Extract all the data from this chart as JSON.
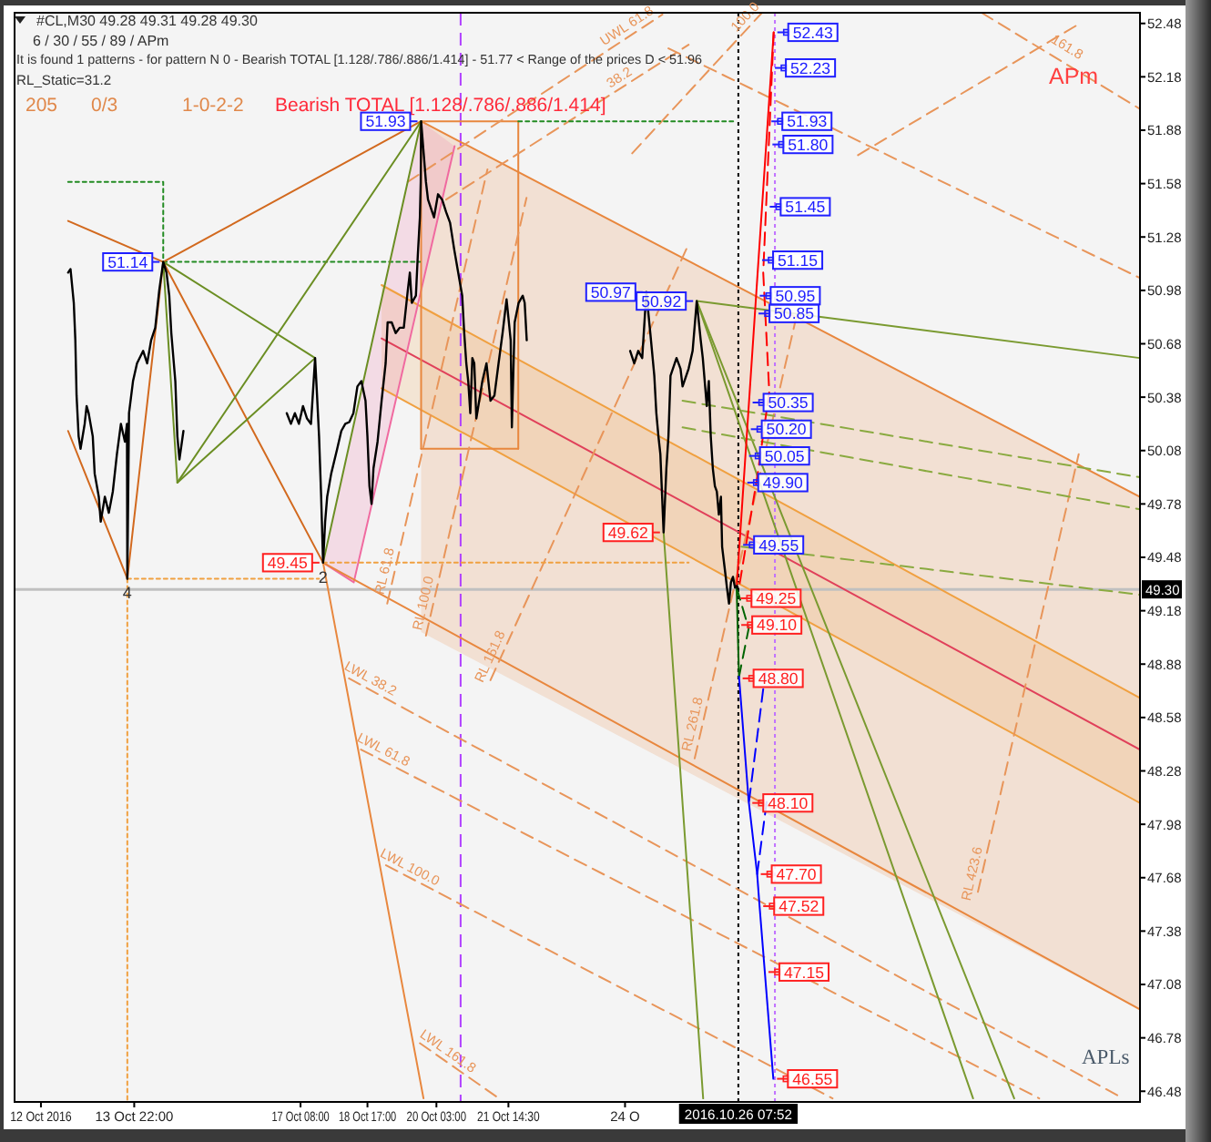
{
  "chart_data": {
    "type": "line",
    "title": "#CL,M30 49.28 49.31 49.28 49.30",
    "subtitle": "6 / 30 / 55 / 89 / APm",
    "xlim": [
      "2016-10-11T11:00",
      "2016-11-03T13:54"
    ],
    "xticks": [
      {
        "value": "2016-10-12",
        "label": "12 Oct 2016"
      },
      {
        "value": "2016-10-13T22:00",
        "label": "13 Oct 22:00"
      },
      {
        "value": "2016-10-17T08:00",
        "label": "17 Oct 08:00"
      },
      {
        "value": "2016-10-18T17:00",
        "label": "18 Oct 17:00"
      },
      {
        "value": "2016-10-20T03:00",
        "label": "20 Oct 03:00"
      },
      {
        "value": "2016-10-21T14:30",
        "label": "21 Oct 14:30"
      },
      {
        "value": "2016-10-24",
        "label": "24 O"
      }
    ],
    "ylim": [
      46.42,
      52.54
    ],
    "yticks": [
      46.48,
      46.78,
      47.08,
      47.38,
      47.68,
      47.98,
      48.28,
      48.58,
      48.88,
      49.18,
      49.48,
      49.78,
      50.08,
      50.38,
      50.68,
      50.98,
      51.28,
      51.58,
      51.88,
      52.18,
      52.48
    ],
    "series": [
      {
        "color": "#e8873e",
        "x": [
          "2016-10-19T19:27",
          "2016-11-03T13:50"
        ],
        "values": [
          51.93,
          49.82
        ],
        "lower": [
          49.06,
          46.94
        ],
        "upper": [
          51.93,
          49.82
        ]
      },
      {
        "color": "#f0a040",
        "x": [
          "2016-10-18T23:58",
          "2016-11-03T13:50"
        ],
        "values": [
          51.01,
          48.69
        ],
        "lower": [
          50.43,
          48.1
        ],
        "upper": [
          51.01,
          48.69
        ]
      },
      {
        "color": "#f0a040",
        "x": [
          "2016-10-18T23:58",
          "2016-11-03T13:50"
        ],
        "values": [
          50.43,
          48.1
        ]
      },
      {
        "color": "#e0405a",
        "x": [
          "2016-10-18T23:58",
          "2016-11-03T13:50"
        ],
        "values": [
          50.71,
          48.4
        ]
      },
      {
        "color": "#f06aa0",
        "x": [
          "2016-10-17T19:07",
          "2016-10-18T10:15",
          "2016-10-19T19:27",
          "2016-10-20T11:57"
        ],
        "values": [
          49.45,
          49.34,
          50.98,
          51.79
        ],
        "lower": [
          49.45,
          49.34,
          50.98,
          51.79
        ],
        "upper": [
          49.45,
          50.21,
          51.93,
          51.79
        ]
      },
      {
        "color": "#e8873e",
        "x": [
          "2016-10-17T19:07",
          "2016-11-03T13:50"
        ],
        "values": [
          49.45,
          46.94
        ]
      },
      {
        "color": "#e8873e",
        "x": [
          "2016-10-17T19:07",
          "2016-10-19T20:38"
        ],
        "values": [
          49.45,
          46.44
        ]
      },
      {
        "color": "#e8873e",
        "x": [
          "2016-10-19T19:27",
          "2016-10-19T19:27",
          "2016-10-21T19:22",
          "2016-10-21T19:22"
        ],
        "values": [
          50.09,
          51.93,
          51.93,
          50.09
        ]
      },
      {
        "color": "#e8873e",
        "x": [
          "2016-10-19T19:27",
          "2016-10-21T19:22"
        ],
        "values": [
          50.09,
          50.09
        ]
      },
      {
        "color": "#e8955a",
        "line_style": "dashed",
        "x": [
          "2016-10-18T07:52",
          "2016-11-03T05:34"
        ],
        "values": [
          48.8,
          46.44
        ]
      },
      {
        "color": "#e8955a",
        "line_style": "dashed",
        "x": [
          "2016-10-18T13:49",
          "2016-11-01T12:13"
        ],
        "values": [
          48.4,
          46.44
        ]
      },
      {
        "color": "#e8955a",
        "line_style": "dashed",
        "x": [
          "2016-10-19T02:09",
          "2016-10-28T06:20"
        ],
        "values": [
          47.75,
          46.44
        ]
      },
      {
        "color": "#e8955a",
        "line_style": "dashed",
        "x": [
          "2016-10-19T18:51",
          "2016-10-21T09:49"
        ],
        "values": [
          46.75,
          46.44
        ]
      },
      {
        "color": "#e8955a",
        "line_style": "dashed",
        "x": [
          "2016-10-19T02:45",
          "2016-10-21T04:10"
        ],
        "values": [
          49.22,
          51.66
        ]
      },
      {
        "color": "#e8955a",
        "line_style": "dashed",
        "x": [
          "2016-10-19T21:50",
          "2016-10-21T23:25"
        ],
        "values": [
          49.04,
          51.5
        ]
      },
      {
        "color": "#e8955a",
        "line_style": "dashed",
        "x": [
          "2016-10-21T05:39",
          "2016-10-25T07:21"
        ],
        "values": [
          48.79,
          51.24
        ]
      },
      {
        "color": "#e8955a",
        "line_style": "dashed",
        "x": [
          "2016-10-25T10:20",
          "2016-10-27T12:02"
        ],
        "values": [
          48.35,
          50.81
        ]
      },
      {
        "color": "#e8955a",
        "line_style": "dashed",
        "x": [
          "2016-10-31T05:59",
          "2016-11-02T07:41"
        ],
        "values": [
          47.6,
          50.06
        ]
      },
      {
        "color": "#e8955a",
        "line_style": "dashed",
        "x": [
          "2016-10-19T12:53",
          "2016-10-24T18:26"
        ],
        "values": [
          51.59,
          52.53
        ]
      },
      {
        "color": "#e8955a",
        "line_style": "dashed",
        "x": [
          "2016-10-20T07:47",
          "2016-10-25T07:21"
        ],
        "values": [
          51.49,
          52.36
        ]
      },
      {
        "color": "#e8955a",
        "line_style": "dashed",
        "x": [
          "2016-10-24T03:31",
          "2016-10-26T19:32"
        ],
        "values": [
          51.75,
          52.54
        ]
      },
      {
        "color": "#e8955a",
        "line_style": "dashed",
        "x": [
          "2016-10-28T18:51",
          "2016-11-02T08:17"
        ],
        "values": [
          51.74,
          52.48
        ]
      },
      {
        "color": "#e8955a",
        "line_style": "dashed",
        "x": [
          "2016-10-24T21:24",
          "2016-11-03T13:50"
        ],
        "values": [
          52.34,
          51.05
        ]
      },
      {
        "color": "#e8955a",
        "line_style": "dashed",
        "x": [
          "2016-10-31T07:47",
          "2016-11-03T13:50"
        ],
        "values": [
          52.54,
          52.0
        ]
      },
      {
        "color": "#f0a040",
        "line_style": "dotted",
        "x": [
          "2016-10-13T18:36",
          "2016-10-17T17:08"
        ],
        "values": [
          49.36,
          49.36
        ]
      },
      {
        "color": "#f0a040",
        "line_style": "dotted",
        "x": [
          "2016-10-17T19:07",
          "2016-10-25T07:21"
        ],
        "values": [
          49.45,
          49.45
        ]
      },
      {
        "color": "#f0a040",
        "line_style": "dotted",
        "x": [
          "2016-10-13T18:36",
          "2016-10-13T18:36"
        ],
        "values": [
          49.36,
          46.42
        ]
      },
      {
        "color": "#228b22",
        "line_style": "dotted",
        "x": [
          "2016-10-21T19:22",
          "2016-10-26T07:01"
        ],
        "values": [
          51.93,
          51.93
        ]
      },
      {
        "color": "#228b22",
        "line_style": "dotted",
        "x": [
          "2016-10-14T12:18",
          "2016-10-19T18:51"
        ],
        "values": [
          51.14,
          51.14
        ]
      },
      {
        "color": "#228b22",
        "line_style": "dotted",
        "x": [
          "2016-10-12T13:24",
          "2016-10-14T12:18",
          "2016-10-14T12:18"
        ],
        "values": [
          51.59,
          51.59,
          51.14
        ]
      },
      {
        "color": "#7a9a30",
        "x": [
          "2016-10-25T11:21",
          "2016-11-03T13:50"
        ],
        "values": [
          50.92,
          50.6
        ]
      },
      {
        "color": "#7a9a30",
        "x": [
          "2016-10-24T19:01",
          "2016-10-25T14:31"
        ],
        "values": [
          49.62,
          46.44
        ]
      },
      {
        "color": "#7a9a30",
        "x": [
          "2016-10-25T11:21",
          "2016-10-31T03:36"
        ],
        "values": [
          50.92,
          46.44
        ]
      },
      {
        "color": "#7a9a30",
        "x": [
          "2016-10-25T11:21",
          "2016-10-31T23:53"
        ],
        "values": [
          50.92,
          46.44
        ]
      },
      {
        "color": "#8aaa40",
        "line_style": "dashed",
        "x": [
          "2016-10-25T04:22",
          "2016-11-03T13:50"
        ],
        "values": [
          50.36,
          49.93
        ]
      },
      {
        "color": "#8aaa40",
        "line_style": "dashed",
        "x": [
          "2016-10-25T04:22",
          "2016-11-03T13:50"
        ],
        "values": [
          50.21,
          49.75
        ]
      },
      {
        "color": "#8aaa40",
        "line_style": "dashed",
        "x": [
          "2016-10-26T09:23",
          "2016-11-03T13:50"
        ],
        "values": [
          49.54,
          49.27
        ]
      },
      {
        "color": "#d2691e",
        "x": [
          "2016-10-12T13:24",
          "2016-10-13T18:36",
          "2016-10-14T12:18",
          "2016-10-17T19:07"
        ],
        "values": [
          50.19,
          49.36,
          51.14,
          49.45
        ]
      },
      {
        "color": "#d2691e",
        "x": [
          "2016-10-12T13:24",
          "2016-10-14T12:18",
          "2016-10-19T19:27"
        ],
        "values": [
          51.37,
          51.14,
          51.93
        ]
      },
      {
        "color": "#6b8e23",
        "x": [
          "2016-10-14T12:18",
          "2016-10-14T19:16",
          "2016-10-17T15:11"
        ],
        "values": [
          51.14,
          49.9,
          50.6
        ]
      },
      {
        "color": "#6b8e23",
        "x": [
          "2016-10-14T12:18",
          "2016-10-17T15:11"
        ],
        "values": [
          51.14,
          50.6
        ]
      },
      {
        "color": "#6b8e23",
        "x": [
          "2016-10-14T19:16",
          "2016-10-19T19:27"
        ],
        "values": [
          49.9,
          51.93
        ]
      },
      {
        "color": "#6b8e23",
        "x": [
          "2016-10-17T19:07",
          "2016-10-19T19:27"
        ],
        "values": [
          49.45,
          51.93
        ]
      },
      {
        "color": "#ff0000",
        "x": [
          "2016-10-26T07:01",
          "2016-10-27T01:18"
        ],
        "values": [
          49.31,
          52.43
        ]
      },
      {
        "color": "#ff0000",
        "line_style": "dashed",
        "x": [
          "2016-10-27T01:18",
          "2016-10-26T20:08",
          "2016-10-26T23:07",
          "2016-10-26T17:09",
          "2016-10-26T08:12"
        ],
        "values": [
          52.43,
          51.08,
          50.41,
          49.93,
          49.31
        ]
      },
      {
        "color": "#006400",
        "x": [
          "2016-10-26T07:01",
          "2016-10-26T08:12"
        ],
        "values": [
          49.31,
          48.81
        ]
      },
      {
        "color": "#006400",
        "line_style": "dashed",
        "x": [
          "2016-10-26T07:01",
          "2016-10-26T12:58",
          "2016-10-26T08:12"
        ],
        "values": [
          49.31,
          49.08,
          48.81
        ]
      },
      {
        "color": "#0000ff",
        "x": [
          "2016-10-26T08:12",
          "2016-10-26T12:58",
          "2016-10-26T17:09",
          "2016-10-26T18:20",
          "2016-10-27T01:07"
        ],
        "values": [
          48.81,
          48.11,
          47.7,
          47.52,
          46.55
        ]
      },
      {
        "color": "#0000ff",
        "line_style": "dashed",
        "x": [
          "2016-10-26T13:09",
          "2016-10-26T21:08"
        ],
        "values": [
          48.11,
          48.83
        ]
      },
      {
        "color": "#0000ff",
        "line_style": "dashed",
        "x": [
          "2016-10-26T17:09",
          "2016-10-26T22:06"
        ],
        "values": [
          47.7,
          48.13
        ]
      },
      {
        "color": "#000000",
        "x": [
          "2016-10-12T13:24",
          "2016-10-12T14:35",
          "2016-10-12T16:12",
          "2016-10-12T16:58",
          "2016-10-12T17:34",
          "2016-10-12T18:35",
          "2016-10-12T19:32",
          "2016-10-12T21:34",
          "2016-10-12T22:31",
          "2016-10-12T23:32",
          "2016-10-13T01:33",
          "2016-10-13T02:30",
          "2016-10-13T04:32",
          "2016-10-13T05:29",
          "2016-10-13T07:31",
          "2016-10-13T09:29",
          "2016-10-13T11:27",
          "2016-10-13T13:28",
          "2016-10-13T15:26",
          "2016-10-13T17:25",
          "2016-10-13T18:25",
          "2016-10-13T18:36",
          "2016-10-13T19:26",
          "2016-10-13T21:24",
          "2016-10-13T23:22",
          "2016-10-14T02:24",
          "2016-10-14T04:22",
          "2016-10-14T06:20",
          "2016-10-14T08:22",
          "2016-10-14T10:20",
          "2016-10-14T12:18",
          "2016-10-14T13:55",
          "2016-10-14T15:17",
          "2016-10-14T16:17",
          "2016-10-14T18:16",
          "2016-10-14T19:16",
          "2016-10-14T20:17",
          "2016-10-14T22:16",
          "2016-10-15T12:00",
          "2016-10-17T01:13",
          "2016-10-17T03:15",
          "2016-10-17T05:13",
          "2016-10-17T07:11",
          "2016-10-17T09:13",
          "2016-10-17T11:11",
          "2016-10-17T13:09",
          "2016-10-17T15:11",
          "2016-10-17T16:08",
          "2016-10-17T17:08",
          "2016-10-17T18:10",
          "2016-10-17T19:07",
          "2016-10-17T20:08",
          "2016-10-17T21:08",
          "2016-10-17T23:07",
          "2016-10-18T02:05",
          "2016-10-18T04:06",
          "2016-10-18T06:04",
          "2016-10-18T08:02",
          "2016-10-18T10:04",
          "2016-10-18T12:02",
          "2016-10-18T14:00",
          "2016-10-18T16:02",
          "2016-10-18T16:59",
          "2016-10-18T17:59",
          "2016-10-18T19:01",
          "2016-10-18T19:58",
          "2016-10-18T21:59",
          "2016-10-18T23:58",
          "2016-10-19T01:58",
          "2016-10-19T02:56",
          "2016-10-19T04:57",
          "2016-10-19T06:55",
          "2016-10-19T08:53",
          "2016-10-19T10:55",
          "2016-10-19T12:53",
          "2016-10-19T13:54",
          "2016-10-19T14:51",
          "2016-10-19T16:53",
          "2016-10-19T17:50",
          "2016-10-19T18:51",
          "2016-10-19T19:16",
          "2016-10-19T19:27",
          "2016-10-19T21:50",
          "2016-10-19T22:51",
          "2016-10-20T01:49",
          "2016-10-20T03:47",
          "2016-10-20T05:49",
          "2016-10-20T07:47",
          "2016-10-20T09:44",
          "2016-10-20T11:46",
          "2016-10-20T13:44",
          "2016-10-20T15:43",
          "2016-10-20T16:43",
          "2016-10-20T17:44",
          "2016-10-20T18:41",
          "2016-10-20T19:42",
          "2016-10-20T20:43",
          "2016-10-20T21:40",
          "2016-10-20T22:41",
          "2016-10-21T01:39",
          "2016-10-21T03:41",
          "2016-10-21T05:39",
          "2016-10-21T07:37",
          "2016-10-21T09:38",
          "2016-10-21T11:37",
          "2016-10-21T13:35",
          "2016-10-21T15:37",
          "2016-10-21T16:12",
          "2016-10-21T17:35",
          "2016-10-21T19:32",
          "2016-10-21T21:34",
          "2016-10-21T22:31",
          "2016-10-21T23:32",
          "2016-10-22T12:00",
          "2016-10-24T02:31",
          "2016-10-24T04:32",
          "2016-10-24T06:30",
          "2016-10-24T08:28",
          "2016-10-24T10:30",
          "2016-10-24T12:28",
          "2016-10-24T14:26",
          "2016-10-24T15:26",
          "2016-10-24T16:28",
          "2016-10-24T17:25",
          "2016-10-24T19:01",
          "2016-10-24T20:23",
          "2016-10-24T21:24",
          "2016-10-24T22:25",
          "2016-10-25T01:23",
          "2016-10-25T03:21",
          "2016-10-25T04:22",
          "2016-10-25T07:21",
          "2016-10-25T09:19",
          "2016-10-25T11:21",
          "2016-10-25T13:19",
          "2016-10-25T14:20",
          "2016-10-25T16:18",
          "2016-10-25T17:19",
          "2016-10-25T18:16",
          "2016-10-25T19:17",
          "2016-10-25T20:18",
          "2016-10-25T21:15",
          "2016-10-25T22:16",
          "2016-10-25T23:17",
          "2016-10-25T23:52",
          "2016-10-26T01:39",
          "2016-10-26T02:14",
          "2016-10-26T03:16",
          "2016-10-26T04:13",
          "2016-10-26T05:13",
          "2016-10-26T06:14",
          "2016-10-26T07:11",
          "2016-10-26T07:52"
        ],
        "values": [
          51.08,
          51.1,
          50.91,
          50.7,
          50.39,
          50.16,
          50.09,
          50.23,
          50.33,
          50.29,
          50.16,
          49.95,
          49.82,
          49.68,
          49.82,
          49.73,
          49.85,
          50.06,
          50.23,
          50.13,
          50.23,
          49.36,
          50.29,
          50.47,
          50.57,
          50.64,
          50.57,
          50.7,
          50.77,
          50.98,
          51.14,
          51.08,
          50.95,
          50.74,
          50.47,
          50.16,
          50.03,
          50.19,
          null,
          50.29,
          50.23,
          50.29,
          50.23,
          50.33,
          50.26,
          50.23,
          50.6,
          50.39,
          50.16,
          49.82,
          49.45,
          49.68,
          49.82,
          49.95,
          50.09,
          50.19,
          50.23,
          50.24,
          50.29,
          50.44,
          50.47,
          50.36,
          50.16,
          49.88,
          49.78,
          49.98,
          50.13,
          50.36,
          50.57,
          50.8,
          50.8,
          50.74,
          50.77,
          50.77,
          50.98,
          51.08,
          50.91,
          50.95,
          51.18,
          51.39,
          51.59,
          51.93,
          51.59,
          51.49,
          51.39,
          51.52,
          51.49,
          51.42,
          51.36,
          51.21,
          51.08,
          50.95,
          50.74,
          50.57,
          50.47,
          50.29,
          50.6,
          50.57,
          50.26,
          50.47,
          50.57,
          50.36,
          50.39,
          50.57,
          50.74,
          50.93,
          50.7,
          50.21,
          50.8,
          50.91,
          50.95,
          50.91,
          50.7,
          null,
          50.64,
          50.57,
          50.64,
          50.6,
          50.97,
          50.74,
          50.5,
          50.29,
          50.16,
          50.06,
          49.62,
          49.98,
          50.16,
          50.5,
          50.6,
          50.54,
          50.44,
          50.54,
          50.64,
          50.92,
          50.7,
          50.6,
          50.33,
          50.47,
          50.16,
          49.98,
          49.88,
          49.85,
          49.72,
          49.82,
          49.54,
          49.37,
          49.31,
          49.22,
          49.34,
          49.37,
          49.31,
          49.32,
          49.3
        ]
      }
    ],
    "ref_lines": [
      {
        "axis": "y",
        "value": 49.3,
        "label": "49.30",
        "color": "#c0c0c0"
      },
      {
        "axis": "x",
        "value": "2016-10-26T07:52",
        "label": "2016.10.26 07:52",
        "color": "#000000",
        "line_style": "dotted"
      },
      {
        "axis": "x",
        "value": "2016-10-20T14:56",
        "color": "#b040ff",
        "line_style": "dashed"
      },
      {
        "axis": "x",
        "value": "2016-10-27T01:54",
        "color": "#c070ff",
        "line_style": "dotted"
      }
    ],
    "annotations": [
      "It is found 1 patterns - for pattern N 0 - Bearish TOTAL [1.128/.786/.886/1.414] - 51.77 < Range of the prices D < 51.96",
      "RL_Static=31.2",
      "205",
      "0/3",
      "1-0-2-2",
      "Bearish TOTAL [1.128/.786/.886/1.414]",
      "APm",
      "APLs",
      {
        "text": "51.14",
        "x": "2016-10-14T12:18",
        "y": 51.14
      },
      {
        "text": "51.93",
        "x": "2016-10-19T19:27",
        "y": 51.93
      },
      {
        "text": "50.97",
        "x": "2016-10-24T10:30",
        "y": 50.97
      },
      {
        "text": "50.92",
        "x": "2016-10-25T11:21",
        "y": 50.92
      },
      {
        "text": "49.45",
        "x": "2016-10-17T19:07",
        "y": 49.45
      },
      {
        "text": "49.62",
        "x": "2016-10-24T19:01",
        "y": 49.62
      },
      {
        "text": "4",
        "x": "2016-10-13T18:36",
        "y": 49.36
      },
      {
        "text": "2",
        "x": "2016-10-17T19:07",
        "y": 49.45
      },
      {
        "text": "52.43",
        "x": "2016-10-27T01:18",
        "y": 52.43
      },
      {
        "text": "52.23",
        "x": "2016-10-27T00:07",
        "y": 52.23
      },
      {
        "text": "51.93",
        "x": "2016-10-26T22:22",
        "y": 51.93
      },
      {
        "text": "51.80",
        "x": "2016-10-26T22:53",
        "y": 51.8
      },
      {
        "text": "51.45",
        "x": "2016-10-26T21:33",
        "y": 51.45
      },
      {
        "text": "51.15",
        "x": "2016-10-26T17:48",
        "y": 51.15
      },
      {
        "text": "50.95",
        "x": "2016-10-26T16:37",
        "y": 50.95
      },
      {
        "text": "50.85",
        "x": "2016-10-26T16:02",
        "y": 50.85
      },
      {
        "text": "50.35",
        "x": "2016-10-26T13:07",
        "y": 50.35
      },
      {
        "text": "50.20",
        "x": "2016-10-26T12:14",
        "y": 50.2
      },
      {
        "text": "50.05",
        "x": "2016-10-26T11:21",
        "y": 50.05
      },
      {
        "text": "49.90",
        "x": "2016-10-26T10:29",
        "y": 49.9
      },
      {
        "text": "49.55",
        "x": "2016-10-26T08:26",
        "y": 49.55
      },
      {
        "text": "49.25",
        "x": "2016-10-26T07:09",
        "y": 49.25
      },
      {
        "text": "49.10",
        "x": "2016-10-26T07:31",
        "y": 49.1
      },
      {
        "text": "48.80",
        "x": "2016-10-26T08:12",
        "y": 48.8
      },
      {
        "text": "48.10",
        "x": "2016-10-26T12:58",
        "y": 48.1
      },
      {
        "text": "47.70",
        "x": "2016-10-26T17:09",
        "y": 47.7
      },
      {
        "text": "47.52",
        "x": "2016-10-26T18:20",
        "y": 47.52
      },
      {
        "text": "47.15",
        "x": "2016-10-26T20:55",
        "y": 47.15
      },
      {
        "text": "46.55",
        "x": "2016-10-27T01:07",
        "y": 46.55
      },
      {
        "text": "LWL 38.2",
        "x": "2016-10-18T16:13",
        "y": 48.75
      },
      {
        "text": "LWL 61.8",
        "x": "2016-10-18T22:46",
        "y": 48.35
      },
      {
        "text": "LWL 100.0",
        "x": "2016-10-19T11:41",
        "y": 47.69
      },
      {
        "text": "LWL 161.8",
        "x": "2016-10-20T05:59",
        "y": 46.66
      },
      {
        "text": "RL 61.8",
        "x": "2016-10-19T06:09",
        "y": 49.39
      },
      {
        "text": "RL 100.0",
        "x": "2016-10-20T01:13",
        "y": 49.21
      },
      {
        "text": "RL 161.8",
        "x": "2016-10-21T09:49",
        "y": 48.9
      },
      {
        "text": "RL 261.8",
        "x": "2016-10-25T13:55",
        "y": 48.53
      },
      {
        "text": "RL 423.6",
        "x": "2016-10-31T07:47",
        "y": 47.69
      },
      {
        "text": "UWL 61.8",
        "x": "2016-10-24T03:31",
        "y": 52.42
      },
      {
        "text": "38.2",
        "x": "2016-10-23T23:45",
        "y": 52.13
      },
      {
        "text": "100.0",
        "x": "2016-10-26T14:46",
        "y": 52.48
      },
      {
        "text": "161.8",
        "x": "2016-11-01T23:32",
        "y": 52.3
      }
    ]
  }
}
